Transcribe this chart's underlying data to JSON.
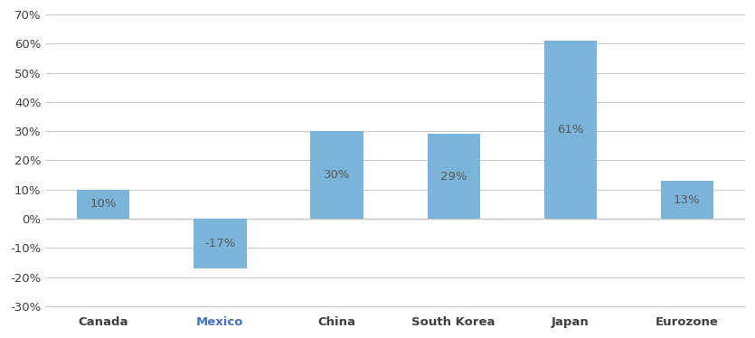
{
  "categories": [
    "Canada",
    "Mexico",
    "China",
    "South Korea",
    "Japan",
    "Eurozone"
  ],
  "values": [
    10,
    -17,
    30,
    29,
    61,
    13
  ],
  "bar_color": "#7ab4d8",
  "label_color": "#595959",
  "mexico_label_color": "#4472c4",
  "background_color": "#ffffff",
  "ylim": [
    -30,
    70
  ],
  "yticks": [
    -30,
    -20,
    -10,
    0,
    10,
    20,
    30,
    40,
    50,
    60,
    70
  ],
  "grid_color": "#c8c8c8",
  "bar_width": 0.45,
  "label_fontsize": 9.5,
  "tick_fontsize": 9.5,
  "xlabel_fontsize": 9.5
}
